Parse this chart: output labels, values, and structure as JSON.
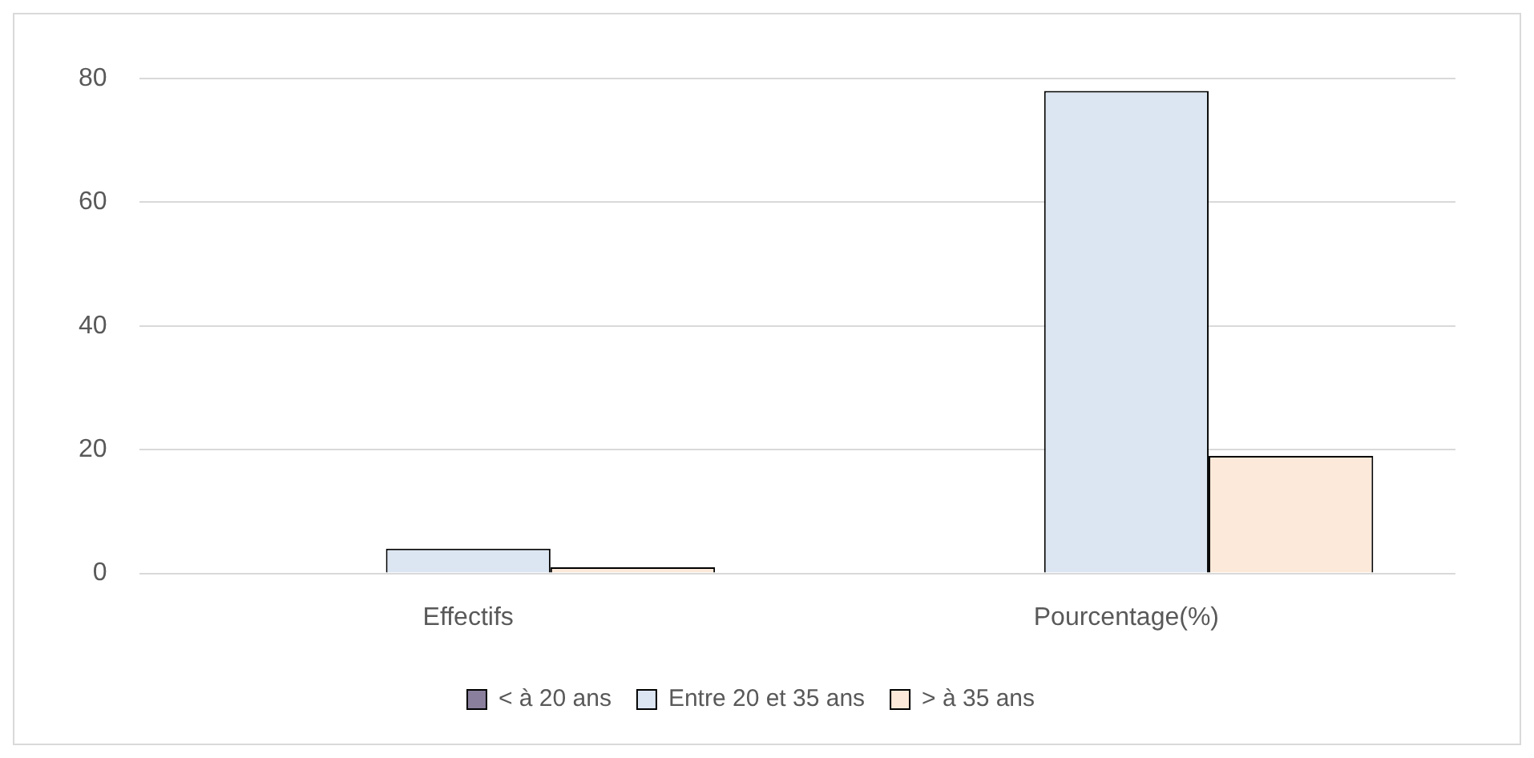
{
  "chart_data": {
    "type": "bar",
    "categories": [
      "Effectifs",
      "Pourcentage(%)"
    ],
    "series": [
      {
        "name": "< à 20 ans",
        "color": "#8a7f9c",
        "values": [
          0,
          0
        ]
      },
      {
        "name": "Entre 20 et 35 ans",
        "color": "#dce6f2",
        "values": [
          4,
          78
        ]
      },
      {
        "name": "> à 35 ans",
        "color": "#fde9d9",
        "values": [
          1,
          19
        ]
      }
    ],
    "ylim": [
      0,
      80
    ],
    "yticks": [
      0,
      20,
      40,
      60,
      80
    ],
    "grid": "y",
    "legend": "bottom"
  }
}
